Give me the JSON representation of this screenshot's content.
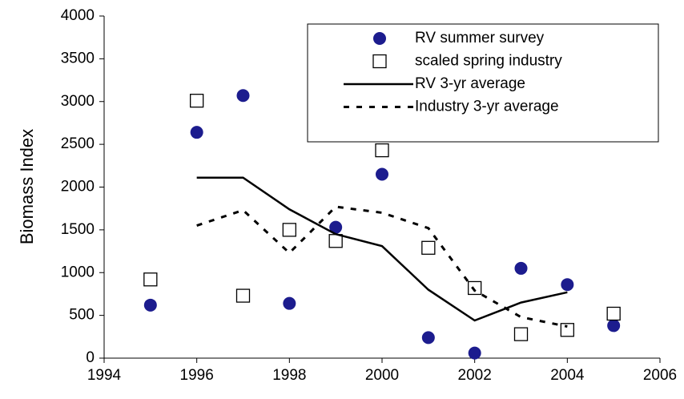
{
  "chart_data": {
    "type": "line",
    "y_label": "Biomass Index",
    "x": [
      1995,
      1996,
      1997,
      1998,
      1999,
      2000,
      2001,
      2002,
      2003,
      2004,
      2005
    ],
    "xlim": [
      1994,
      2006
    ],
    "xticks": [
      1994,
      1996,
      1998,
      2000,
      2002,
      2004,
      2006
    ],
    "ylim": [
      0,
      4000
    ],
    "yticks": [
      0,
      500,
      1000,
      1500,
      2000,
      2500,
      3000,
      3500,
      4000
    ],
    "grid": false,
    "legend": "upper right",
    "series": [
      {
        "name": "RV summer survey",
        "color": "#1c1c8e",
        "marker": "circle",
        "line": "none",
        "values": [
          620,
          2640,
          3070,
          640,
          1530,
          2150,
          240,
          60,
          1050,
          860,
          380
        ]
      },
      {
        "name": "scaled spring industry",
        "color": "#000000",
        "marker": "square",
        "line": "none",
        "values": [
          920,
          3010,
          730,
          1500,
          1370,
          2430,
          1290,
          820,
          280,
          330,
          520
        ]
      },
      {
        "name": "RV 3-yr average",
        "color": "#000000",
        "marker": "none",
        "line": "solid",
        "values": [
          null,
          2110,
          2110,
          1740,
          1450,
          1310,
          800,
          440,
          650,
          770,
          null
        ]
      },
      {
        "name": "Industry 3-yr average",
        "color": "#000000",
        "marker": "none",
        "line": "dashed",
        "values": [
          null,
          1550,
          1730,
          1230,
          1770,
          1700,
          1520,
          790,
          480,
          370,
          null
        ]
      }
    ]
  }
}
